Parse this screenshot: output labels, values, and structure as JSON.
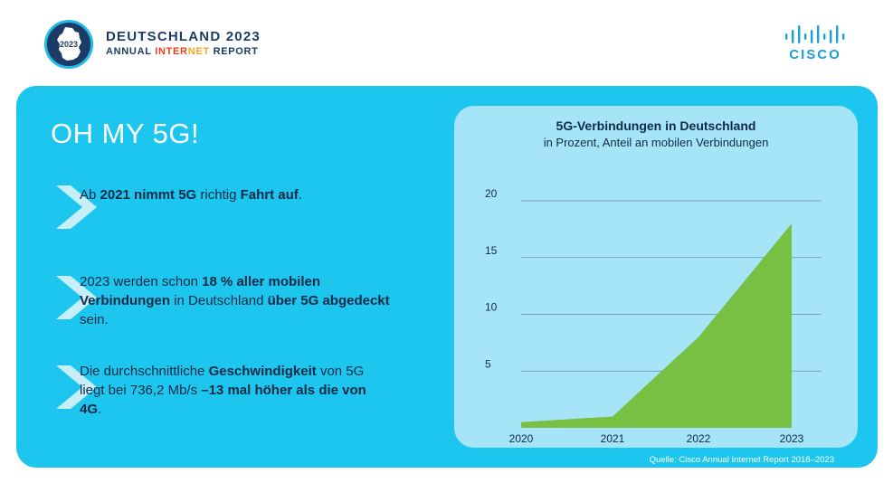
{
  "header": {
    "badge_year": "2023",
    "title": "DEUTSCHLAND 2023",
    "subtitle_parts": [
      "ANNUAL ",
      "INTER",
      "NET",
      " REPORT"
    ],
    "logo_text": "CISCO",
    "logo_icon": "cisco-bars-icon"
  },
  "main": {
    "headline": "OH MY 5G!",
    "points": [
      {
        "icon": "chevron-right-icon",
        "segments": [
          {
            "t": "Ab ",
            "b": false
          },
          {
            "t": "2021 nimmt 5G",
            "b": true
          },
          {
            "t": " richtig ",
            "b": false
          },
          {
            "t": "Fahrt auf",
            "b": true
          },
          {
            "t": ".",
            "b": false
          }
        ]
      },
      {
        "icon": "chevron-right-icon",
        "segments": [
          {
            "t": "2023 werden schon ",
            "b": false
          },
          {
            "t": "18 % aller mobilen Verbindungen",
            "b": true
          },
          {
            "t": " in Deutschland ",
            "b": false
          },
          {
            "t": "über 5G abgedeckt",
            "b": true
          },
          {
            "t": " sein.",
            "b": false
          }
        ]
      },
      {
        "icon": "chevron-right-icon",
        "segments": [
          {
            "t": "Die durchschnittliche ",
            "b": false
          },
          {
            "t": "Geschwindigkeit",
            "b": true
          },
          {
            "t": " von 5G liegt bei 736,2 Mb/s ",
            "b": false
          },
          {
            "t": "–13 mal höher als die von 4G",
            "b": true
          },
          {
            "t": ".",
            "b": false
          }
        ]
      }
    ]
  },
  "chart_data": {
    "type": "area",
    "title": "5G-Verbindungen in Deutschland",
    "subtitle": "in Prozent, Anteil an mobilen Verbindungen",
    "x": [
      "2020",
      "2021",
      "2022",
      "2023"
    ],
    "values": [
      0.5,
      1.0,
      8.0,
      18.0
    ],
    "yticks": [
      5,
      10,
      15,
      20
    ],
    "ylim": [
      0,
      20
    ],
    "grid": true,
    "fill_color": "#77c043",
    "gridline_color": "#6e8ea3",
    "axis_color": "#0e2a47"
  },
  "source": "Quelle: Cisco Annual Internet Report 2018–2023",
  "colors": {
    "panel": "#1cc6ee",
    "card": "#a6e5f7",
    "navy": "#0e2a47",
    "accent_red": "#e8401c",
    "accent_orange": "#f5a623",
    "cisco_blue": "#1ba0d7"
  }
}
